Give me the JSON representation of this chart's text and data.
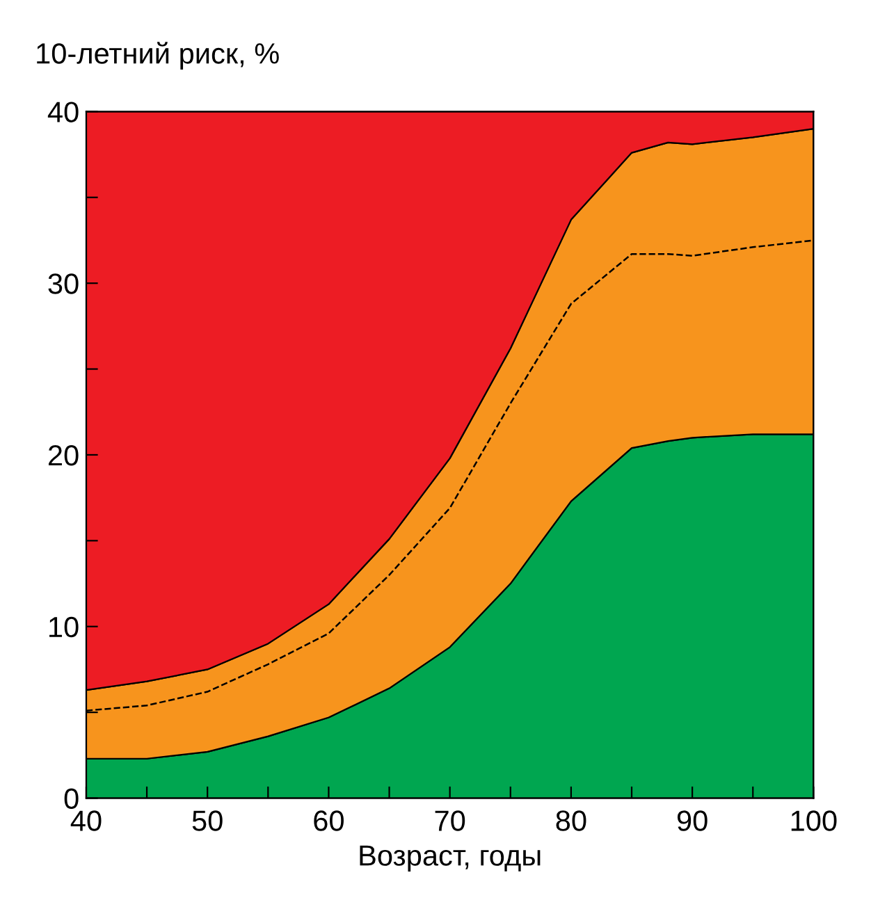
{
  "chart_data": {
    "type": "area",
    "ylabel": "10-летний риск, %",
    "xlabel": "Возраст, годы",
    "x": [
      40,
      45,
      50,
      55,
      60,
      65,
      70,
      75,
      80,
      85,
      88,
      90,
      95,
      100
    ],
    "series": [
      {
        "color": "#00a650",
        "values": [
          2.3,
          2.3,
          2.7,
          3.6,
          4.7,
          6.4,
          8.8,
          12.5,
          17.3,
          20.4,
          20.8,
          21.0,
          21.2,
          21.2
        ]
      },
      {
        "color": "#f7941d",
        "values": [
          4.0,
          4.5,
          4.8,
          5.4,
          6.6,
          8.7,
          11.0,
          13.7,
          16.4,
          17.2,
          17.4,
          17.1,
          17.3,
          17.8
        ]
      },
      {
        "color": "#ed1c24",
        "values": [
          33.7,
          33.2,
          32.5,
          31.0,
          28.7,
          24.9,
          20.2,
          13.8,
          6.3,
          2.4,
          1.8,
          1.9,
          1.5,
          1.0
        ]
      },
      {
        "type": "line",
        "line_style": "dashed",
        "color": "#000000",
        "values": [
          5.1,
          5.4,
          6.2,
          7.8,
          9.6,
          13.0,
          16.9,
          23.0,
          28.8,
          31.7,
          31.7,
          31.6,
          32.1,
          32.5
        ]
      }
    ],
    "xlim": [
      40,
      100
    ],
    "ylim": [
      0,
      40
    ],
    "xticks": [
      40,
      {
        "value": 45,
        "label": null
      },
      50,
      {
        "value": 55,
        "label": null
      },
      60,
      {
        "value": 65,
        "label": null
      },
      70,
      {
        "value": 75,
        "label": null
      },
      80,
      {
        "value": 85,
        "label": null
      },
      90,
      {
        "value": 95,
        "label": null
      },
      100
    ],
    "yticks": [
      0,
      {
        "value": 5,
        "label": null
      },
      10,
      {
        "value": 15,
        "label": null
      },
      20,
      {
        "value": 25,
        "label": null
      },
      30,
      {
        "value": 35,
        "label": null
      },
      40
    ],
    "stacked": true,
    "grid": false,
    "legend": false
  }
}
